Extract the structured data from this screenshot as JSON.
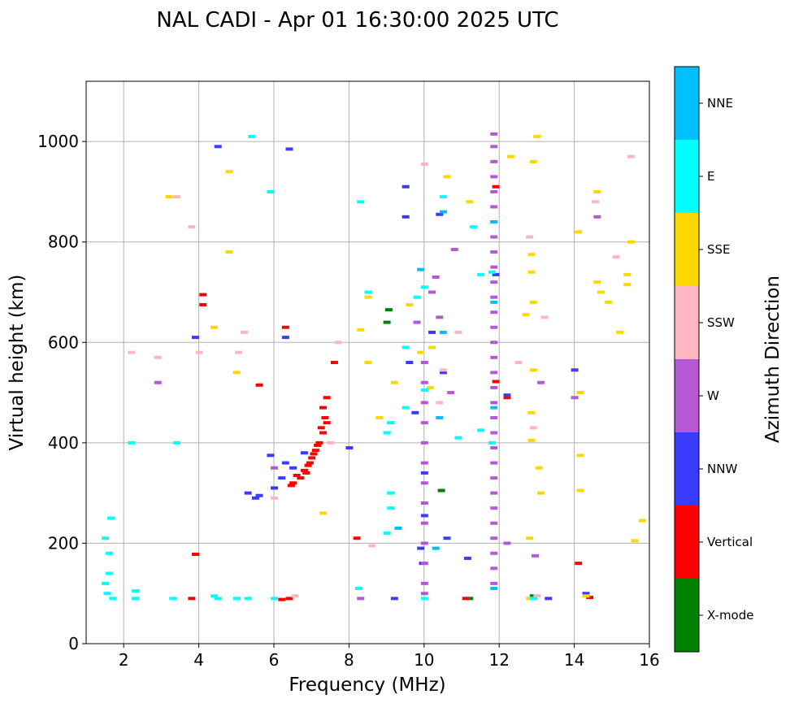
{
  "chart_data": {
    "type": "scatter",
    "title": "NAL CADI - Apr 01 16:30:00 2025 UTC",
    "xlabel": "Frequency (MHz)",
    "ylabel": "Virtual height (km)",
    "xlim": [
      1,
      16
    ],
    "ylim": [
      0,
      1120
    ],
    "xticks": [
      2,
      4,
      6,
      8,
      10,
      12,
      14,
      16
    ],
    "yticks": [
      0,
      200,
      400,
      600,
      800,
      1000
    ],
    "grid": true,
    "colorbar": {
      "label": "Azimuth Direction",
      "categories": [
        {
          "name": "X-mode",
          "color": "#008000"
        },
        {
          "name": "Vertical",
          "color": "#ff0000"
        },
        {
          "name": "NNW",
          "color": "#3b3bff"
        },
        {
          "name": "W",
          "color": "#b657d6"
        },
        {
          "name": "SSW",
          "color": "#ffb6c1"
        },
        {
          "name": "SSE",
          "color": "#ffd700"
        },
        {
          "name": "E",
          "color": "#00ffff"
        },
        {
          "name": "NNE",
          "color": "#00bfff"
        }
      ]
    },
    "series": [
      {
        "name": "X-mode",
        "points": [
          [
            9.05,
            665
          ],
          [
            10.45,
            305
          ],
          [
            12.9,
            95
          ],
          [
            11.2,
            90
          ],
          [
            9.0,
            640
          ]
        ]
      },
      {
        "name": "Vertical",
        "points": [
          [
            6.7,
            330
          ],
          [
            6.8,
            345
          ],
          [
            6.9,
            355
          ],
          [
            7.0,
            370
          ],
          [
            7.1,
            385
          ],
          [
            7.2,
            400
          ],
          [
            7.3,
            420
          ],
          [
            7.35,
            450
          ],
          [
            7.4,
            490
          ],
          [
            6.5,
            320
          ],
          [
            6.6,
            335
          ],
          [
            6.95,
            360
          ],
          [
            7.05,
            378
          ],
          [
            7.15,
            395
          ],
          [
            6.85,
            340
          ],
          [
            7.25,
            430
          ],
          [
            7.3,
            470
          ],
          [
            6.45,
            315
          ],
          [
            7.4,
            440
          ],
          [
            6.4,
            90
          ],
          [
            6.2,
            88
          ],
          [
            7.6,
            560
          ],
          [
            4.1,
            675
          ],
          [
            4.1,
            695
          ],
          [
            3.8,
            90
          ],
          [
            3.9,
            178
          ],
          [
            5.6,
            515
          ],
          [
            8.2,
            210
          ],
          [
            11.9,
            910
          ],
          [
            11.9,
            522
          ],
          [
            14.1,
            160
          ],
          [
            14.4,
            92
          ],
          [
            6.3,
            630
          ],
          [
            12.2,
            490
          ],
          [
            11.1,
            90
          ]
        ]
      },
      {
        "name": "NNW",
        "points": [
          [
            5.3,
            300
          ],
          [
            5.5,
            290
          ],
          [
            5.6,
            295
          ],
          [
            6.0,
            310
          ],
          [
            6.2,
            330
          ],
          [
            6.5,
            350
          ],
          [
            6.3,
            360
          ],
          [
            6.8,
            380
          ],
          [
            4.5,
            990
          ],
          [
            5.9,
            375
          ],
          [
            6.4,
            985
          ],
          [
            10.0,
            340
          ],
          [
            10.0,
            255
          ],
          [
            9.95,
            160
          ],
          [
            9.9,
            190
          ],
          [
            10.6,
            210
          ],
          [
            9.6,
            560
          ],
          [
            9.75,
            460
          ],
          [
            10.4,
            855
          ],
          [
            9.5,
            910
          ],
          [
            9.5,
            850
          ],
          [
            10.5,
            540
          ],
          [
            11.15,
            170
          ],
          [
            8.0,
            390
          ],
          [
            11.9,
            735
          ],
          [
            12.2,
            495
          ],
          [
            13.3,
            90
          ],
          [
            14.0,
            545
          ],
          [
            14.3,
            100
          ],
          [
            10.2,
            620
          ],
          [
            3.9,
            610
          ],
          [
            6.3,
            610
          ],
          [
            9.2,
            90
          ]
        ]
      },
      {
        "name": "W",
        "points": [
          [
            11.85,
            1015
          ],
          [
            11.85,
            990
          ],
          [
            11.85,
            960
          ],
          [
            11.85,
            930
          ],
          [
            11.85,
            900
          ],
          [
            11.85,
            870
          ],
          [
            11.85,
            840
          ],
          [
            11.85,
            810
          ],
          [
            11.85,
            780
          ],
          [
            11.85,
            750
          ],
          [
            11.85,
            720
          ],
          [
            11.85,
            690
          ],
          [
            11.85,
            660
          ],
          [
            11.85,
            630
          ],
          [
            11.85,
            600
          ],
          [
            11.85,
            570
          ],
          [
            11.85,
            540
          ],
          [
            11.85,
            510
          ],
          [
            11.85,
            480
          ],
          [
            11.85,
            450
          ],
          [
            11.85,
            420
          ],
          [
            11.85,
            390
          ],
          [
            11.85,
            360
          ],
          [
            11.85,
            330
          ],
          [
            11.85,
            300
          ],
          [
            11.85,
            270
          ],
          [
            11.85,
            240
          ],
          [
            11.85,
            210
          ],
          [
            11.85,
            180
          ],
          [
            11.85,
            150
          ],
          [
            11.85,
            120
          ],
          [
            10.0,
            560
          ],
          [
            10.0,
            520
          ],
          [
            10.0,
            480
          ],
          [
            10.0,
            440
          ],
          [
            10.0,
            400
          ],
          [
            10.0,
            360
          ],
          [
            10.0,
            320
          ],
          [
            10.0,
            280
          ],
          [
            10.0,
            240
          ],
          [
            10.0,
            200
          ],
          [
            10.0,
            160
          ],
          [
            10.0,
            120
          ],
          [
            10.0,
            100
          ],
          [
            14.6,
            850
          ],
          [
            12.95,
            175
          ],
          [
            6.0,
            350
          ],
          [
            10.3,
            730
          ],
          [
            10.4,
            650
          ],
          [
            10.2,
            700
          ],
          [
            9.8,
            640
          ],
          [
            10.8,
            785
          ],
          [
            10.7,
            500
          ],
          [
            12.2,
            200
          ],
          [
            13.1,
            520
          ],
          [
            2.9,
            520
          ],
          [
            8.3,
            90
          ],
          [
            14.0,
            490
          ]
        ]
      },
      {
        "name": "SSW",
        "points": [
          [
            6.55,
            95
          ],
          [
            2.9,
            570
          ],
          [
            3.4,
            890
          ],
          [
            5.05,
            580
          ],
          [
            7.7,
            600
          ],
          [
            8.6,
            195
          ],
          [
            10.9,
            620
          ],
          [
            12.5,
            560
          ],
          [
            13.2,
            650
          ],
          [
            14.55,
            880
          ],
          [
            15.1,
            770
          ],
          [
            12.9,
            430
          ],
          [
            13.0,
            95
          ],
          [
            10.4,
            480
          ],
          [
            10.5,
            545
          ],
          [
            10.0,
            955
          ],
          [
            15.5,
            970
          ],
          [
            5.2,
            620
          ],
          [
            4.0,
            580
          ],
          [
            3.8,
            830
          ],
          [
            12.8,
            810
          ],
          [
            7.5,
            400
          ],
          [
            6.0,
            290
          ],
          [
            2.2,
            580
          ]
        ]
      },
      {
        "name": "SSE",
        "points": [
          [
            12.85,
            775
          ],
          [
            12.85,
            740
          ],
          [
            13.1,
            300
          ],
          [
            13.05,
            350
          ],
          [
            12.85,
            405
          ],
          [
            12.85,
            460
          ],
          [
            12.9,
            545
          ],
          [
            12.7,
            655
          ],
          [
            12.9,
            680
          ],
          [
            14.15,
            305
          ],
          [
            14.15,
            375
          ],
          [
            14.6,
            720
          ],
          [
            14.7,
            700
          ],
          [
            14.9,
            680
          ],
          [
            15.2,
            620
          ],
          [
            15.4,
            735
          ],
          [
            15.4,
            715
          ],
          [
            15.5,
            800
          ],
          [
            15.8,
            245
          ],
          [
            15.6,
            205
          ],
          [
            14.6,
            900
          ],
          [
            10.15,
            510
          ],
          [
            10.2,
            590
          ],
          [
            9.6,
            675
          ],
          [
            9.9,
            580
          ],
          [
            8.8,
            450
          ],
          [
            8.5,
            560
          ],
          [
            8.3,
            625
          ],
          [
            8.5,
            690
          ],
          [
            9.2,
            520
          ],
          [
            12.8,
            90
          ],
          [
            12.8,
            210
          ],
          [
            13.0,
            1010
          ],
          [
            12.3,
            970
          ],
          [
            12.9,
            960
          ],
          [
            11.2,
            880
          ],
          [
            10.6,
            930
          ],
          [
            7.3,
            260
          ],
          [
            4.8,
            940
          ],
          [
            4.8,
            780
          ],
          [
            3.2,
            890
          ],
          [
            4.4,
            630
          ],
          [
            5.0,
            540
          ],
          [
            14.15,
            500
          ],
          [
            14.1,
            820
          ],
          [
            14.3,
            95
          ]
        ]
      },
      {
        "name": "E",
        "points": [
          [
            1.5,
            120
          ],
          [
            1.55,
            100
          ],
          [
            1.6,
            140
          ],
          [
            1.6,
            180
          ],
          [
            1.5,
            210
          ],
          [
            1.65,
            250
          ],
          [
            1.7,
            90
          ],
          [
            2.3,
            105
          ],
          [
            2.3,
            90
          ],
          [
            3.3,
            90
          ],
          [
            4.4,
            95
          ],
          [
            4.5,
            90
          ],
          [
            5.0,
            90
          ],
          [
            9.1,
            440
          ],
          [
            9.1,
            300
          ],
          [
            9.1,
            270
          ],
          [
            9.0,
            220
          ],
          [
            8.25,
            110
          ],
          [
            8.5,
            700
          ],
          [
            8.3,
            880
          ],
          [
            9.5,
            590
          ],
          [
            9.8,
            690
          ],
          [
            10.0,
            710
          ],
          [
            9.5,
            470
          ],
          [
            10.0,
            505
          ],
          [
            11.5,
            735
          ],
          [
            11.8,
            740
          ],
          [
            11.5,
            425
          ],
          [
            11.8,
            400
          ],
          [
            12.9,
            90
          ],
          [
            10.0,
            90
          ],
          [
            5.4,
            1010
          ],
          [
            6.0,
            90
          ],
          [
            9.0,
            420
          ],
          [
            10.5,
            890
          ],
          [
            10.9,
            410
          ],
          [
            11.3,
            830
          ],
          [
            5.9,
            900
          ],
          [
            5.0,
            90
          ],
          [
            5.3,
            90
          ],
          [
            3.4,
            400
          ],
          [
            2.2,
            400
          ]
        ]
      },
      {
        "name": "NNE",
        "points": [
          [
            11.85,
            840
          ],
          [
            11.85,
            680
          ],
          [
            11.85,
            470
          ],
          [
            11.85,
            110
          ],
          [
            10.5,
            860
          ],
          [
            10.5,
            620
          ],
          [
            10.4,
            450
          ],
          [
            10.3,
            190
          ],
          [
            9.3,
            230
          ],
          [
            9.9,
            745
          ]
        ]
      }
    ]
  }
}
